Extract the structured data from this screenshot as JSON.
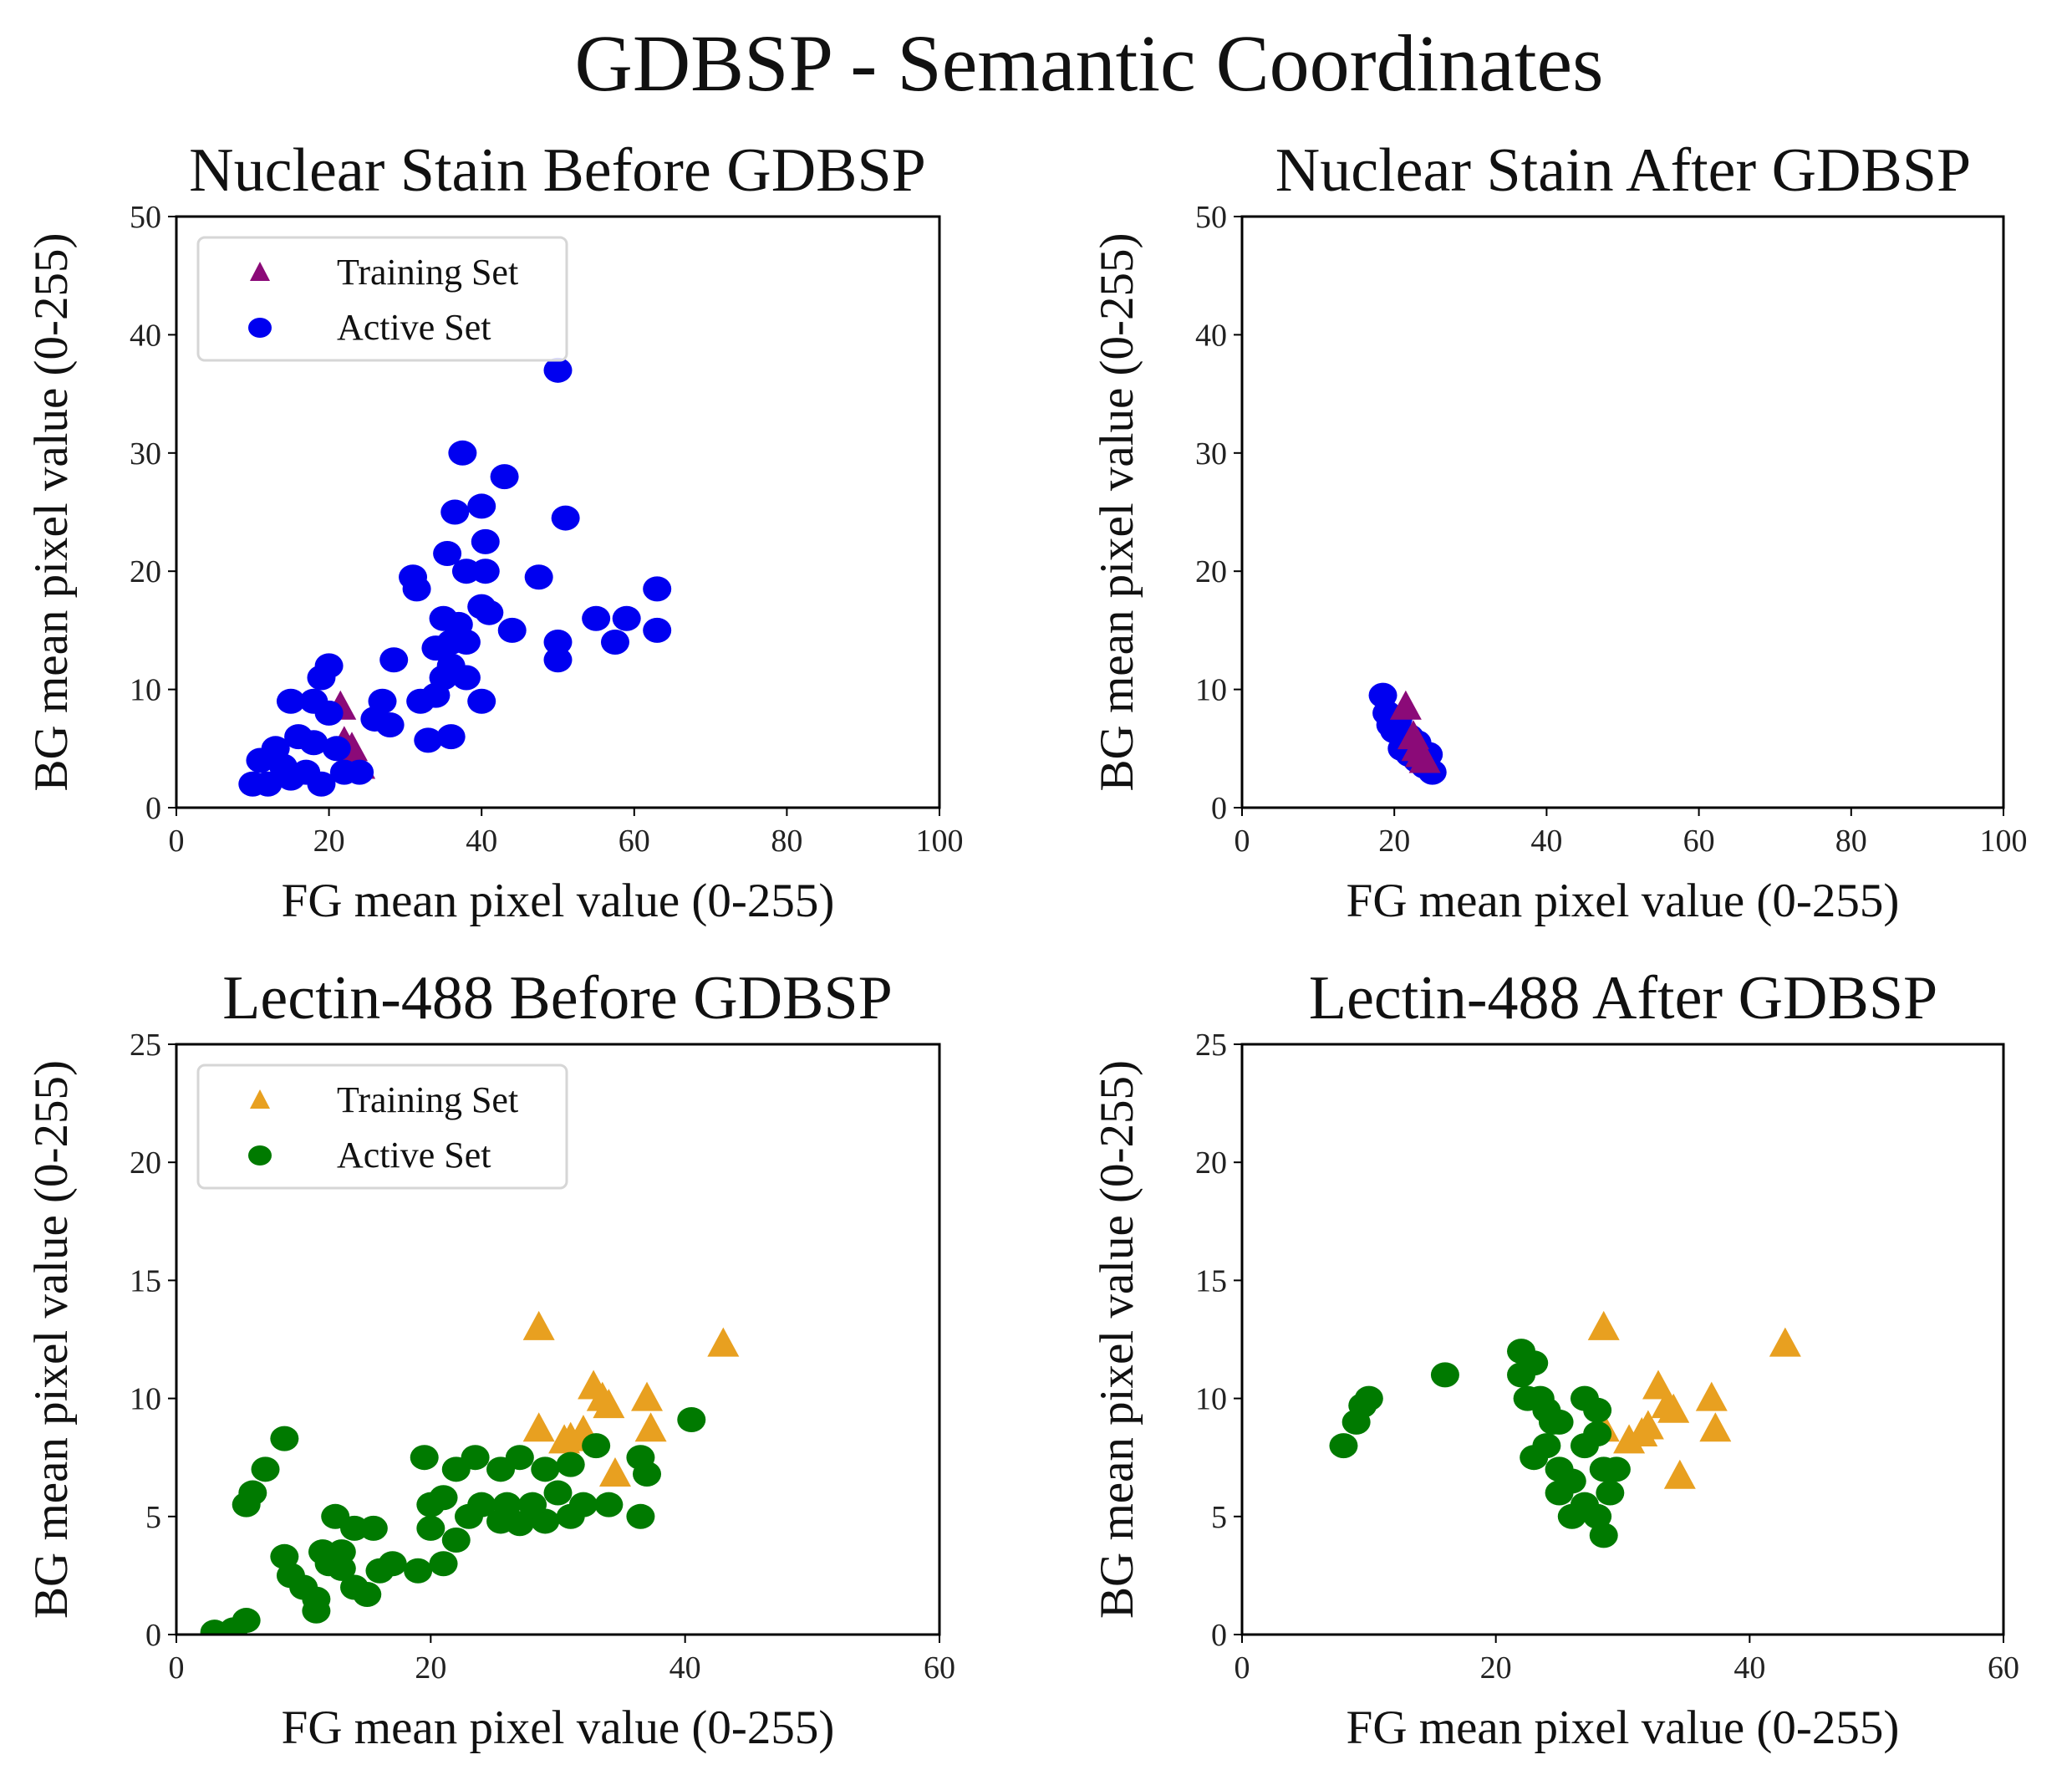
{
  "title": "GDBSP - Semantic Coordinates",
  "colors": {
    "blue": "#0000f0",
    "purple": "#8b0a78",
    "orange": "#e8a020",
    "green": "#007a00"
  },
  "chart_data": [
    {
      "type": "scatter",
      "title": "Nuclear Stain Before GDBSP",
      "xlabel": "FG mean pixel value (0-255)",
      "ylabel": "BG mean pixel value (0-255)",
      "xlim": [
        0,
        100
      ],
      "ylim": [
        0,
        50
      ],
      "xticks": [
        0,
        20,
        40,
        60,
        80,
        100
      ],
      "yticks": [
        0,
        10,
        20,
        30,
        40,
        50
      ],
      "legend": "top-left",
      "series": [
        {
          "name": "Training Set",
          "marker": "triangle",
          "color": "purple",
          "points": [
            [
              21.5,
              8.5
            ],
            [
              22,
              5.5
            ],
            [
              23,
              5
            ],
            [
              23.5,
              4
            ],
            [
              24,
              3.5
            ]
          ]
        },
        {
          "name": "Active Set",
          "marker": "circle",
          "color": "blue",
          "points": [
            [
              50,
              37
            ],
            [
              37.5,
              30
            ],
            [
              43,
              28
            ],
            [
              51,
              24.5
            ],
            [
              40,
              25.5
            ],
            [
              36.5,
              25
            ],
            [
              35.5,
              21.5
            ],
            [
              40.5,
              22.5
            ],
            [
              31,
              19.5
            ],
            [
              31.5,
              18.5
            ],
            [
              38,
              20
            ],
            [
              40.5,
              20
            ],
            [
              47.5,
              19.5
            ],
            [
              63,
              18.5
            ],
            [
              40,
              17
            ],
            [
              41,
              16.5
            ],
            [
              35,
              16
            ],
            [
              37,
              15.5
            ],
            [
              36,
              14
            ],
            [
              38,
              14
            ],
            [
              34,
              13.5
            ],
            [
              44,
              15
            ],
            [
              55,
              16
            ],
            [
              59,
              16
            ],
            [
              57.5,
              14
            ],
            [
              63,
              15
            ],
            [
              50,
              14
            ],
            [
              50,
              12.5
            ],
            [
              36,
              12
            ],
            [
              35,
              11
            ],
            [
              38,
              11
            ],
            [
              40,
              9
            ],
            [
              32,
              9
            ],
            [
              34,
              9.5
            ],
            [
              28.5,
              12.5
            ],
            [
              36,
              6
            ],
            [
              33,
              5.7
            ],
            [
              26,
              7.5
            ],
            [
              27,
              9
            ],
            [
              28,
              7
            ],
            [
              20,
              12
            ],
            [
              19,
              11
            ],
            [
              18,
              9
            ],
            [
              15,
              9
            ],
            [
              20,
              8
            ],
            [
              16,
              6
            ],
            [
              18,
              5.5
            ],
            [
              13,
              5
            ],
            [
              11,
              4
            ],
            [
              14,
              3.5
            ],
            [
              17,
              3
            ],
            [
              10,
              2
            ],
            [
              12,
              2
            ],
            [
              19,
              2
            ],
            [
              22,
              3
            ],
            [
              24,
              3
            ],
            [
              21,
              5
            ],
            [
              15,
              2.5
            ]
          ]
        }
      ]
    },
    {
      "type": "scatter",
      "title": "Nuclear Stain After GDBSP",
      "xlabel": "FG mean pixel value (0-255)",
      "ylabel": "BG mean pixel value (0-255)",
      "xlim": [
        0,
        100
      ],
      "ylim": [
        0,
        50
      ],
      "xticks": [
        0,
        20,
        40,
        60,
        80,
        100
      ],
      "yticks": [
        0,
        10,
        20,
        30,
        40,
        50
      ],
      "series": [
        {
          "name": "Active Set",
          "marker": "circle",
          "color": "blue",
          "points": [
            [
              18.5,
              9.5
            ],
            [
              19,
              8
            ],
            [
              19.5,
              7
            ],
            [
              20,
              6.5
            ],
            [
              21,
              6
            ],
            [
              21,
              5
            ],
            [
              22,
              4.5
            ],
            [
              23,
              4
            ],
            [
              24,
              3.5
            ],
            [
              25,
              3
            ],
            [
              22,
              6
            ],
            [
              23,
              5.5
            ],
            [
              20.5,
              7.5
            ],
            [
              24.5,
              4.5
            ]
          ]
        },
        {
          "name": "Training Set",
          "marker": "triangle",
          "color": "purple",
          "points": [
            [
              21.5,
              8.5
            ],
            [
              22.5,
              6
            ],
            [
              23,
              5
            ],
            [
              23.5,
              4.5
            ],
            [
              24,
              4
            ]
          ]
        }
      ]
    },
    {
      "type": "scatter",
      "title": "Lectin-488 Before GDBSP",
      "xlabel": "FG mean pixel value (0-255)",
      "ylabel": "BG mean pixel value (0-255)",
      "xlim": [
        0,
        60
      ],
      "ylim": [
        0,
        25
      ],
      "xticks": [
        0,
        20,
        40,
        60
      ],
      "yticks": [
        0,
        5,
        10,
        15,
        20,
        25
      ],
      "legend": "top-left",
      "series": [
        {
          "name": "Training Set",
          "marker": "triangle",
          "color": "orange",
          "points": [
            [
              28.5,
              13
            ],
            [
              43,
              12.3
            ],
            [
              32.8,
              10.5
            ],
            [
              37,
              10
            ],
            [
              34,
              9.7
            ],
            [
              33.5,
              10
            ],
            [
              28.5,
              8.7
            ],
            [
              30.5,
              8.2
            ],
            [
              32,
              8.6
            ],
            [
              37.3,
              8.7
            ],
            [
              34.5,
              6.8
            ],
            [
              31,
              8.3
            ]
          ]
        },
        {
          "name": "Active Set",
          "marker": "circle",
          "color": "green",
          "points": [
            [
              40.5,
              9.1
            ],
            [
              8.5,
              8.3
            ],
            [
              7,
              7
            ],
            [
              6,
              6
            ],
            [
              5.5,
              5.5
            ],
            [
              12.5,
              5
            ],
            [
              14,
              4.5
            ],
            [
              15.5,
              4.5
            ],
            [
              8.5,
              3.3
            ],
            [
              9,
              2.5
            ],
            [
              10,
              2
            ],
            [
              11,
              1.5
            ],
            [
              12,
              3
            ],
            [
              13,
              3.5
            ],
            [
              11,
              1
            ],
            [
              14,
              2
            ],
            [
              16,
              2.7
            ],
            [
              15,
              1.7
            ],
            [
              19,
              2.7
            ],
            [
              21,
              3
            ],
            [
              22,
              4
            ],
            [
              20,
              4.5
            ],
            [
              20,
              5.5
            ],
            [
              21,
              5.8
            ],
            [
              19.5,
              7.5
            ],
            [
              22,
              7
            ],
            [
              23.5,
              7.5
            ],
            [
              25.5,
              7
            ],
            [
              27,
              7.5
            ],
            [
              29,
              7
            ],
            [
              31,
              7.2
            ],
            [
              33,
              8
            ],
            [
              36.5,
              7.5
            ],
            [
              37,
              6.8
            ],
            [
              36.5,
              5
            ],
            [
              34,
              5.5
            ],
            [
              32,
              5.5
            ],
            [
              31,
              5
            ],
            [
              29,
              4.8
            ],
            [
              27,
              4.7
            ],
            [
              25.5,
              4.8
            ],
            [
              24,
              5.5
            ],
            [
              23,
              5
            ],
            [
              26,
              5.5
            ],
            [
              28,
              5.5
            ],
            [
              30,
              6
            ],
            [
              3,
              0.1
            ],
            [
              5.5,
              0.6
            ],
            [
              4.5,
              0.2
            ],
            [
              17,
              3
            ],
            [
              13,
              2.8
            ],
            [
              11.5,
              3.5
            ]
          ]
        }
      ]
    },
    {
      "type": "scatter",
      "title": "Lectin-488 After GDBSP",
      "xlabel": "FG mean pixel value (0-255)",
      "ylabel": "BG mean pixel value (0-255)",
      "xlim": [
        0,
        60
      ],
      "ylim": [
        0,
        25
      ],
      "xticks": [
        0,
        20,
        40,
        60
      ],
      "yticks": [
        0,
        5,
        10,
        15,
        20,
        25
      ],
      "series": [
        {
          "name": "Training Set",
          "marker": "triangle",
          "color": "orange",
          "points": [
            [
              28.5,
              13
            ],
            [
              42.8,
              12.3
            ],
            [
              32.8,
              10.5
            ],
            [
              37,
              10
            ],
            [
              33.5,
              9.7
            ],
            [
              34,
              9.5
            ],
            [
              28.5,
              8.7
            ],
            [
              30.5,
              8.2
            ],
            [
              32,
              8.8
            ],
            [
              37.3,
              8.7
            ],
            [
              34.5,
              6.7
            ],
            [
              31.5,
              8.5
            ]
          ]
        },
        {
          "name": "Active Set",
          "marker": "circle",
          "color": "green",
          "points": [
            [
              8,
              8
            ],
            [
              9,
              9
            ],
            [
              9.5,
              9.7
            ],
            [
              10,
              10
            ],
            [
              16,
              11
            ],
            [
              22,
              12
            ],
            [
              23,
              11.5
            ],
            [
              22,
              11
            ],
            [
              23.5,
              10
            ],
            [
              22.5,
              10
            ],
            [
              24,
              9.5
            ],
            [
              25,
              9
            ],
            [
              27,
              10
            ],
            [
              28,
              9.5
            ],
            [
              24,
              8
            ],
            [
              23,
              7.5
            ],
            [
              25,
              7
            ],
            [
              26,
              6.5
            ],
            [
              27,
              8
            ],
            [
              28,
              8.5
            ],
            [
              28.5,
              7
            ],
            [
              29,
              6
            ],
            [
              27,
              5.5
            ],
            [
              26,
              5
            ],
            [
              28,
              5
            ],
            [
              28.5,
              4.2
            ],
            [
              29.5,
              7
            ],
            [
              25,
              6
            ],
            [
              24.5,
              9
            ]
          ]
        }
      ]
    }
  ]
}
